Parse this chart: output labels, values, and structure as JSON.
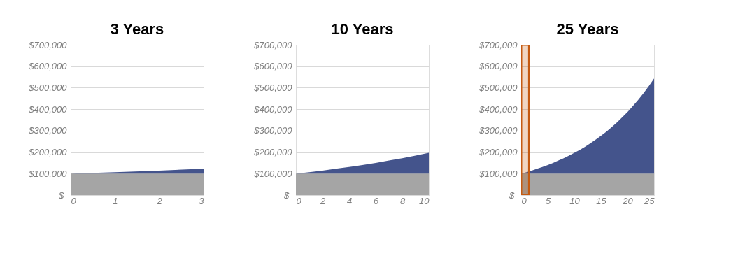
{
  "chart_data": [
    {
      "type": "area",
      "title": "3 Years",
      "stacked": true,
      "grid": "y",
      "legend": false,
      "x": [
        0,
        1,
        2,
        3
      ],
      "series": [
        {
          "color": "#a5a5a5",
          "values": [
            100000,
            100000,
            100000,
            100000
          ]
        },
        {
          "color": "#44548c",
          "values": [
            0,
            7000,
            14000,
            23000
          ]
        }
      ],
      "xlim": [
        0,
        3
      ],
      "xticks": [
        0,
        1,
        2,
        3
      ],
      "ylim": [
        0,
        700000
      ],
      "yticks": [
        {
          "value": 0,
          "label": "$-"
        },
        {
          "value": 100000,
          "label": "$100,000"
        },
        {
          "value": 200000,
          "label": "$200,000"
        },
        {
          "value": 300000,
          "label": "$300,000"
        },
        {
          "value": 400000,
          "label": "$400,000"
        },
        {
          "value": 500000,
          "label": "$500,000"
        },
        {
          "value": 600000,
          "label": "$600,000"
        },
        {
          "value": 700000,
          "label": "$700,000"
        }
      ]
    },
    {
      "type": "area",
      "title": "10 Years",
      "stacked": true,
      "grid": "y",
      "legend": false,
      "x": [
        0,
        1,
        2,
        3,
        4,
        5,
        6,
        7,
        8,
        9,
        10
      ],
      "series": [
        {
          "color": "#a5a5a5",
          "values": [
            100000,
            100000,
            100000,
            100000,
            100000,
            100000,
            100000,
            100000,
            100000,
            100000,
            100000
          ]
        },
        {
          "color": "#44548c",
          "values": [
            0,
            7000,
            14000,
            23000,
            31000,
            40000,
            50000,
            61000,
            72000,
            84000,
            97000
          ]
        }
      ],
      "xlim": [
        0,
        10
      ],
      "xticks": [
        0,
        2,
        4,
        6,
        8,
        10
      ],
      "ylim": [
        0,
        700000
      ],
      "yticks": [
        {
          "value": 0,
          "label": "$-"
        },
        {
          "value": 100000,
          "label": "$100,000"
        },
        {
          "value": 200000,
          "label": "$200,000"
        },
        {
          "value": 300000,
          "label": "$300,000"
        },
        {
          "value": 400000,
          "label": "$400,000"
        },
        {
          "value": 500000,
          "label": "$500,000"
        },
        {
          "value": 600000,
          "label": "$600,000"
        },
        {
          "value": 700000,
          "label": "$700,000"
        }
      ]
    },
    {
      "type": "area",
      "title": "25 Years",
      "stacked": true,
      "grid": "y",
      "legend": false,
      "x": [
        0,
        1,
        2,
        3,
        4,
        5,
        6,
        7,
        8,
        9,
        10,
        11,
        12,
        13,
        14,
        15,
        16,
        17,
        18,
        19,
        20,
        21,
        22,
        23,
        24,
        25
      ],
      "series": [
        {
          "color": "#a5a5a5",
          "values": [
            100000,
            100000,
            100000,
            100000,
            100000,
            100000,
            100000,
            100000,
            100000,
            100000,
            100000,
            100000,
            100000,
            100000,
            100000,
            100000,
            100000,
            100000,
            100000,
            100000,
            100000,
            100000,
            100000,
            100000,
            100000,
            100000
          ]
        },
        {
          "color": "#44548c",
          "values": [
            0,
            7000,
            14000,
            23000,
            31000,
            40000,
            50000,
            61000,
            72000,
            84000,
            97000,
            110000,
            125000,
            141000,
            158000,
            176000,
            195000,
            216000,
            238000,
            262000,
            287000,
            314000,
            343000,
            374000,
            407000,
            443000
          ]
        }
      ],
      "xlim": [
        0,
        25
      ],
      "xticks": [
        0,
        5,
        10,
        15,
        20,
        25
      ],
      "ylim": [
        0,
        700000
      ],
      "yticks": [
        {
          "value": 0,
          "label": "$-"
        },
        {
          "value": 100000,
          "label": "$100,000"
        },
        {
          "value": 200000,
          "label": "$200,000"
        },
        {
          "value": 300000,
          "label": "$300,000"
        },
        {
          "value": 400000,
          "label": "$400,000"
        },
        {
          "value": 500000,
          "label": "$500,000"
        },
        {
          "value": 600000,
          "label": "$600,000"
        },
        {
          "value": 700000,
          "label": "$700,000"
        }
      ],
      "bands": [
        {
          "axis": "x",
          "from": 0,
          "to": 1.5,
          "color": "#c55a11"
        }
      ]
    }
  ]
}
